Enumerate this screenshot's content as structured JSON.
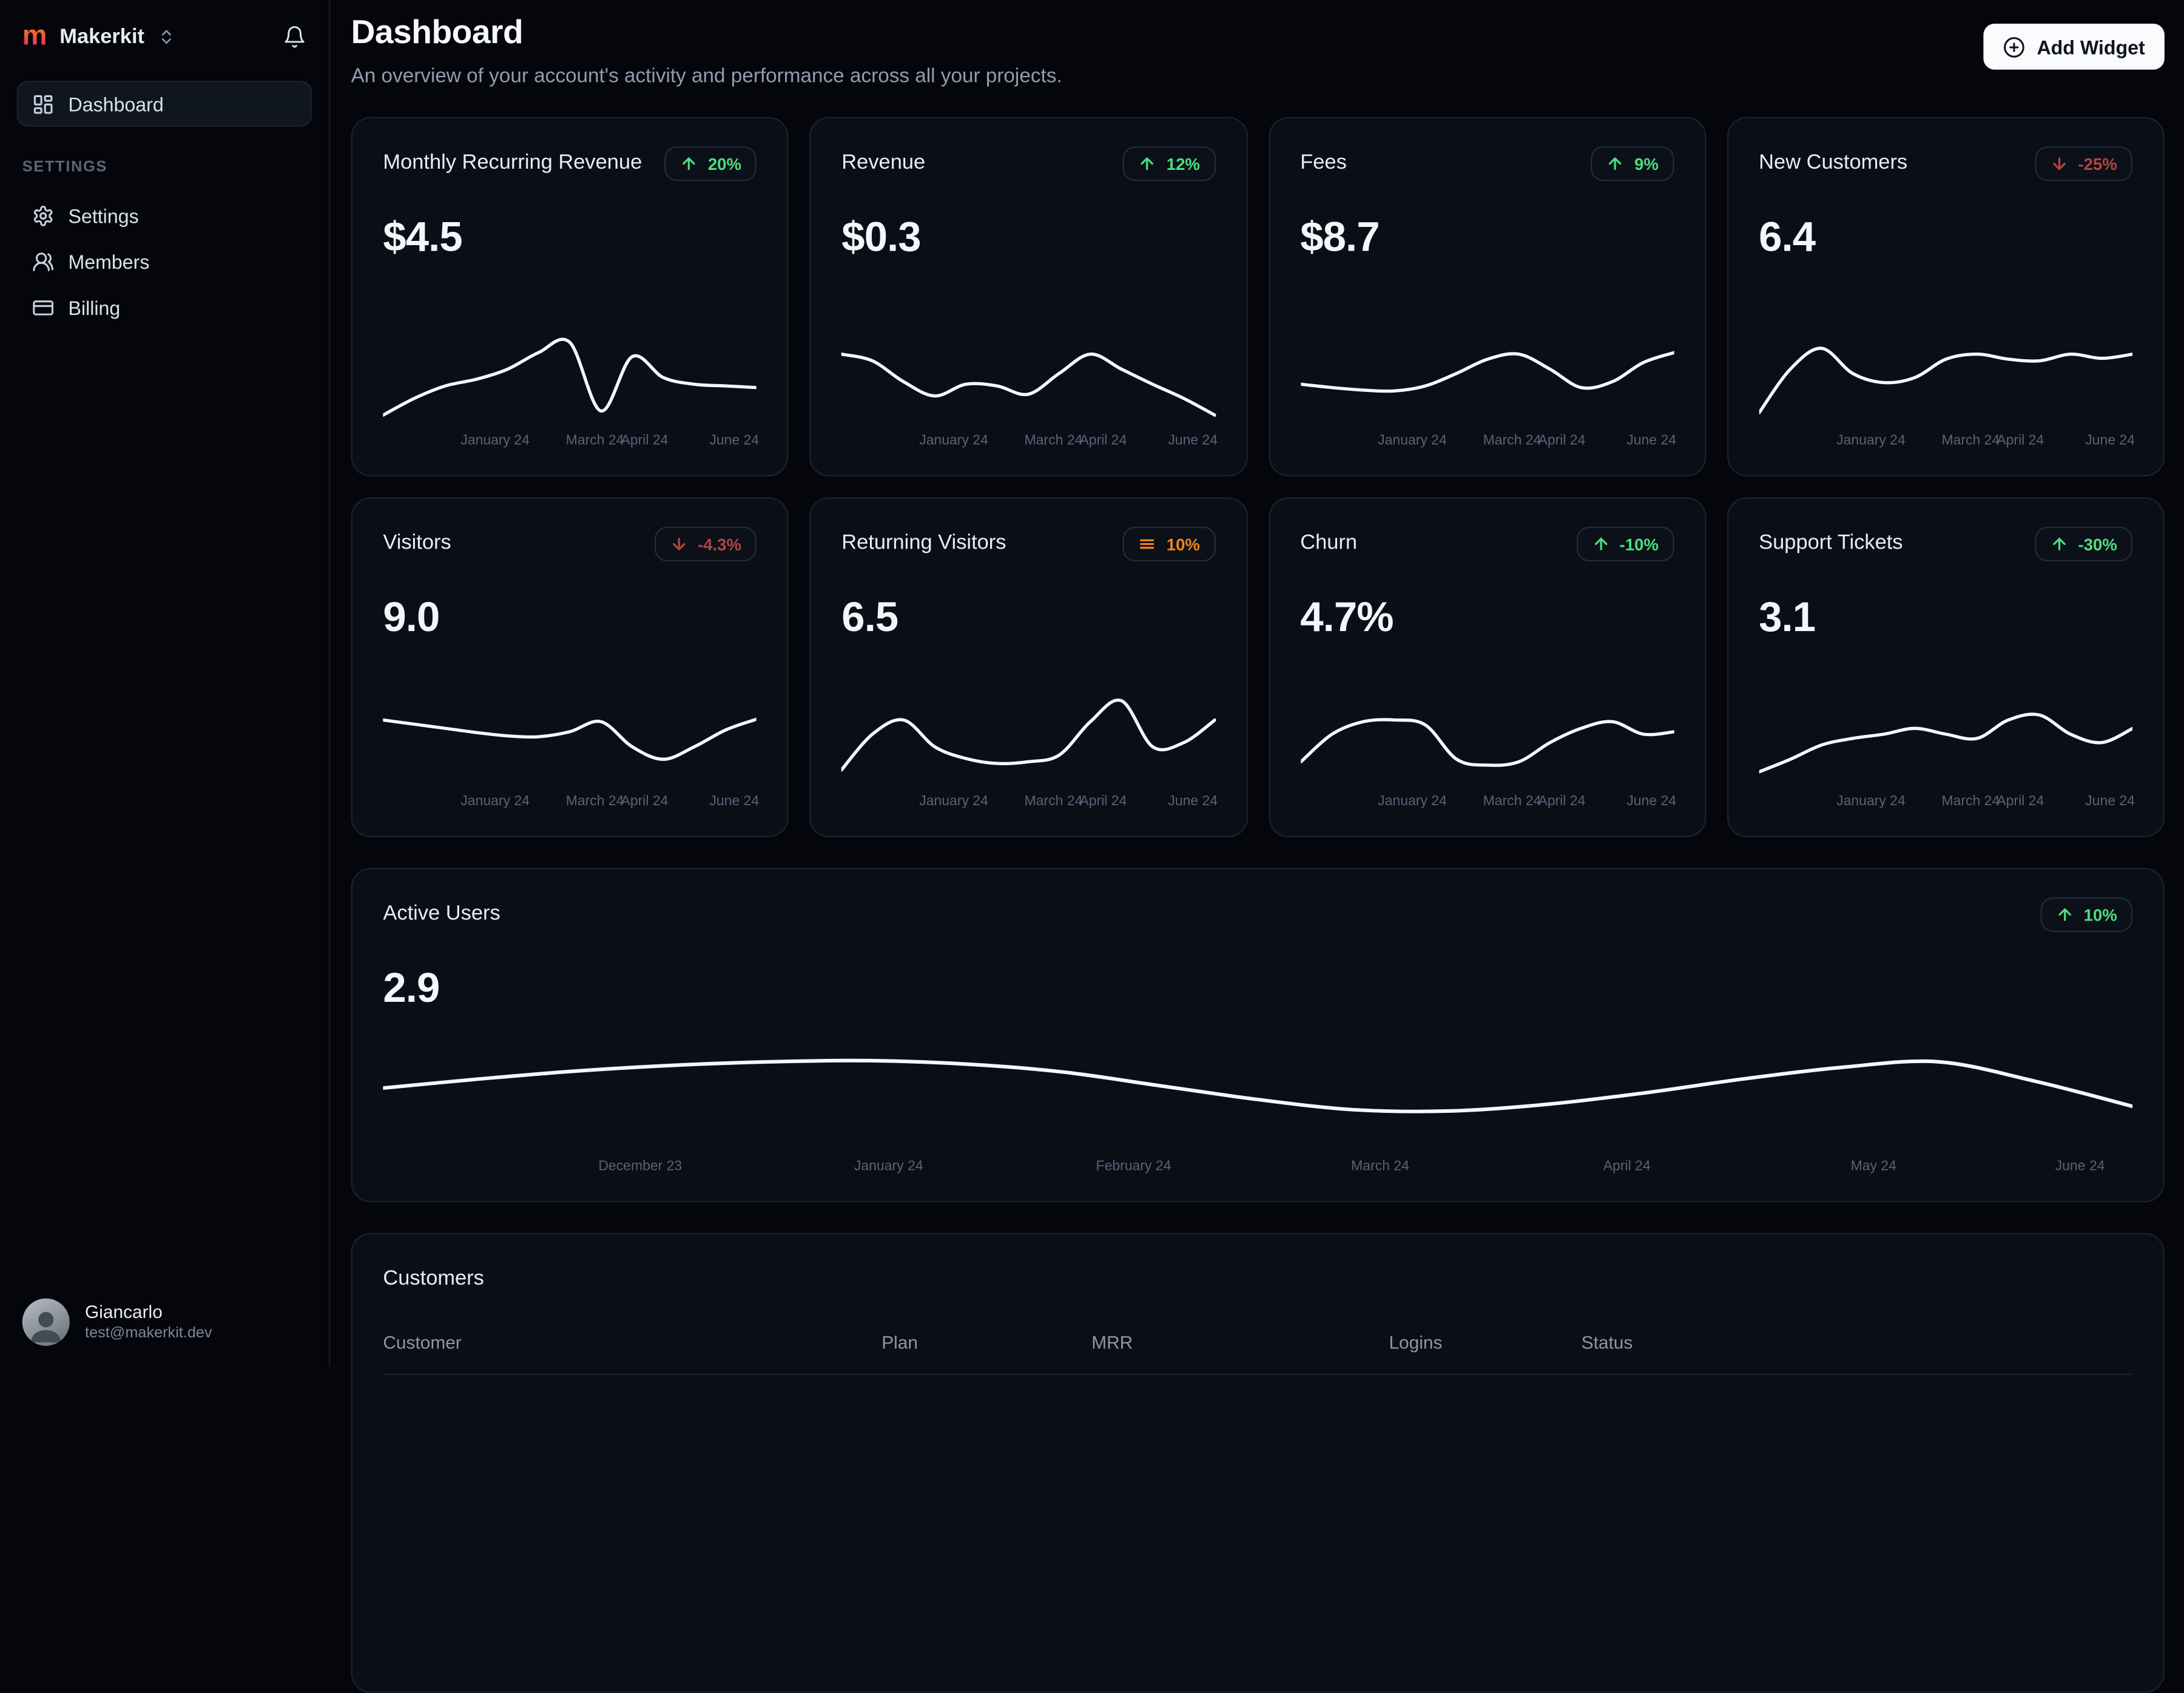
{
  "colors": {
    "background": "#04060c",
    "card_background": "#0a0e16",
    "card_border": "#1a2130",
    "line": "#f5f8fb",
    "green": "#4ade80",
    "red": "#b34444",
    "orange": "#f08418",
    "logo_gradient_start": "#f97316",
    "logo_gradient_end": "#db2777"
  },
  "sidebar": {
    "workspace": {
      "logo_letter": "m",
      "name": "Makerkit"
    },
    "nav": [
      {
        "label": "Dashboard",
        "icon": "dashboard-grid-icon",
        "active": true
      }
    ],
    "section_label": "SETTINGS",
    "settings_nav": [
      {
        "label": "Settings",
        "icon": "gear-icon"
      },
      {
        "label": "Members",
        "icon": "users-icon"
      },
      {
        "label": "Billing",
        "icon": "credit-card-icon"
      }
    ],
    "user": {
      "name": "Giancarlo",
      "email": "test@makerkit.dev"
    }
  },
  "header": {
    "title": "Dashboard",
    "subtitle": "An overview of your account's activity and performance across all your projects.",
    "add_widget_label": "Add Widget"
  },
  "cards": [
    {
      "title": "Monthly Recurring Revenue",
      "value": "$4.5",
      "badge": {
        "icon": "arrow-up",
        "text": "20%",
        "color": "green"
      },
      "chart": 0
    },
    {
      "title": "Revenue",
      "value": "$0.3",
      "badge": {
        "icon": "arrow-up",
        "text": "12%",
        "color": "green"
      },
      "chart": 1
    },
    {
      "title": "Fees",
      "value": "$8.7",
      "badge": {
        "icon": "arrow-up",
        "text": "9%",
        "color": "green"
      },
      "chart": 2
    },
    {
      "title": "New Customers",
      "value": "6.4",
      "badge": {
        "icon": "arrow-down",
        "text": "-25%",
        "color": "red"
      },
      "chart": 3
    },
    {
      "title": "Visitors",
      "value": "9.0",
      "badge": {
        "icon": "arrow-down",
        "text": "-4.3%",
        "color": "red"
      },
      "chart": 4
    },
    {
      "title": "Returning Visitors",
      "value": "6.5",
      "badge": {
        "icon": "menu-lines",
        "text": "10%",
        "color": "orange"
      },
      "chart": 5
    },
    {
      "title": "Churn",
      "value": "4.7%",
      "badge": {
        "icon": "arrow-up",
        "text": "-10%",
        "color": "green"
      },
      "chart": 6
    },
    {
      "title": "Support Tickets",
      "value": "3.1",
      "badge": {
        "icon": "arrow-up",
        "text": "-30%",
        "color": "green"
      },
      "chart": 7
    }
  ],
  "active_users": {
    "title": "Active Users",
    "value": "2.9",
    "badge": {
      "icon": "arrow-up",
      "text": "10%",
      "color": "green"
    },
    "chart": 8
  },
  "customers": {
    "title": "Customers",
    "columns": [
      "Customer",
      "Plan",
      "MRR",
      "Logins",
      "Status"
    ]
  },
  "chart_data": [
    {
      "type": "line",
      "title": "Monthly Recurring Revenue trend",
      "x_ticks": [
        "January 24",
        "March 24",
        "April 24",
        "June 24"
      ],
      "tick_pos": [
        30,
        56.7,
        70,
        94
      ],
      "y_normalized": true,
      "values": [
        0.05,
        0.25,
        0.4,
        0.48,
        0.6,
        0.8,
        0.92,
        0.1,
        0.75,
        0.5,
        0.42,
        0.4,
        0.38
      ]
    },
    {
      "type": "line",
      "title": "Revenue trend",
      "x_ticks": [
        "January 24",
        "March 24",
        "April 24",
        "June 24"
      ],
      "tick_pos": [
        30,
        56.7,
        70,
        94
      ],
      "y_normalized": true,
      "values": [
        0.78,
        0.7,
        0.45,
        0.28,
        0.42,
        0.4,
        0.3,
        0.55,
        0.78,
        0.6,
        0.42,
        0.25,
        0.05
      ]
    },
    {
      "type": "line",
      "title": "Fees trend",
      "x_ticks": [
        "January 24",
        "March 24",
        "April 24",
        "June 24"
      ],
      "tick_pos": [
        30,
        56.7,
        70,
        94
      ],
      "y_normalized": true,
      "values": [
        0.42,
        0.38,
        0.35,
        0.34,
        0.4,
        0.55,
        0.72,
        0.78,
        0.6,
        0.38,
        0.45,
        0.68,
        0.8
      ]
    },
    {
      "type": "line",
      "title": "New Customers trend",
      "x_ticks": [
        "January 24",
        "March 24",
        "April 24",
        "June 24"
      ],
      "tick_pos": [
        30,
        56.7,
        70,
        94
      ],
      "y_normalized": true,
      "values": [
        0.08,
        0.6,
        0.85,
        0.55,
        0.44,
        0.5,
        0.72,
        0.78,
        0.72,
        0.7,
        0.78,
        0.73,
        0.78
      ]
    },
    {
      "type": "line",
      "title": "Visitors trend",
      "x_ticks": [
        "January 24",
        "March 24",
        "April 24",
        "June 24"
      ],
      "tick_pos": [
        30,
        56.7,
        70,
        94
      ],
      "y_normalized": true,
      "values": [
        0.72,
        0.67,
        0.62,
        0.57,
        0.53,
        0.52,
        0.58,
        0.7,
        0.4,
        0.25,
        0.4,
        0.6,
        0.73
      ]
    },
    {
      "type": "line",
      "title": "Returning Visitors trend",
      "x_ticks": [
        "January 24",
        "March 24",
        "April 24",
        "June 24"
      ],
      "tick_pos": [
        30,
        56.7,
        70,
        94
      ],
      "y_normalized": true,
      "values": [
        0.12,
        0.55,
        0.72,
        0.4,
        0.26,
        0.2,
        0.22,
        0.3,
        0.7,
        0.95,
        0.4,
        0.45,
        0.72
      ]
    },
    {
      "type": "line",
      "title": "Churn trend",
      "x_ticks": [
        "January 24",
        "March 24",
        "April 24",
        "June 24"
      ],
      "tick_pos": [
        30,
        56.7,
        70,
        94
      ],
      "y_normalized": true,
      "values": [
        0.22,
        0.55,
        0.7,
        0.72,
        0.66,
        0.25,
        0.18,
        0.22,
        0.45,
        0.62,
        0.7,
        0.55,
        0.58
      ]
    },
    {
      "type": "line",
      "title": "Support Tickets trend",
      "x_ticks": [
        "January 24",
        "March 24",
        "April 24",
        "June 24"
      ],
      "tick_pos": [
        30,
        56.7,
        70,
        94
      ],
      "y_normalized": true,
      "values": [
        0.1,
        0.25,
        0.42,
        0.5,
        0.55,
        0.62,
        0.55,
        0.5,
        0.72,
        0.78,
        0.55,
        0.45,
        0.62
      ]
    },
    {
      "type": "line",
      "title": "Active Users trend",
      "x_ticks": [
        "December 23",
        "January 24",
        "February 24",
        "March 24",
        "April 24",
        "May 24",
        "June 24"
      ],
      "tick_pos": [
        14.7,
        28.9,
        42.9,
        57,
        71.1,
        85.2,
        97
      ],
      "y_normalized": true,
      "values": [
        0.5,
        0.58,
        0.65,
        0.7,
        0.73,
        0.74,
        0.71,
        0.64,
        0.52,
        0.4,
        0.31,
        0.3,
        0.36,
        0.46,
        0.58,
        0.68,
        0.73,
        0.56,
        0.34
      ]
    }
  ]
}
